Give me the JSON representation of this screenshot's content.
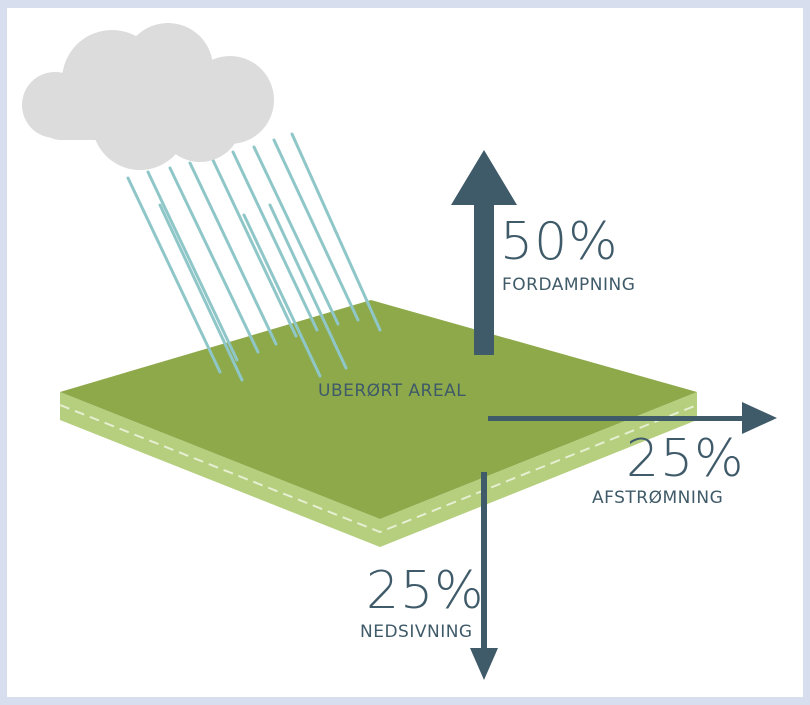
{
  "diagram": {
    "area_label": "UBERØRT AREAL",
    "flows": [
      {
        "id": "evaporation",
        "percent": "50%",
        "label": "FORDAMPNING",
        "direction": "up"
      },
      {
        "id": "runoff",
        "percent": "25%",
        "label": "AFSTRØMNING",
        "direction": "right"
      },
      {
        "id": "infiltration",
        "percent": "25%",
        "label": "NEDSIVNING",
        "direction": "down"
      }
    ]
  },
  "colors": {
    "background_frame": "#d7deee",
    "panel": "#ffffff",
    "cloud": "#dcdcdc",
    "rain": "#8fc7c9",
    "ground_top": "#8ea94a",
    "ground_side": "#b5cf7e",
    "arrow": "#3f5a69",
    "text": "#3f5a69"
  },
  "icons": {
    "cloud": "cloud-icon",
    "rain": "rain-streaks",
    "arrows": "arrow-icon"
  }
}
